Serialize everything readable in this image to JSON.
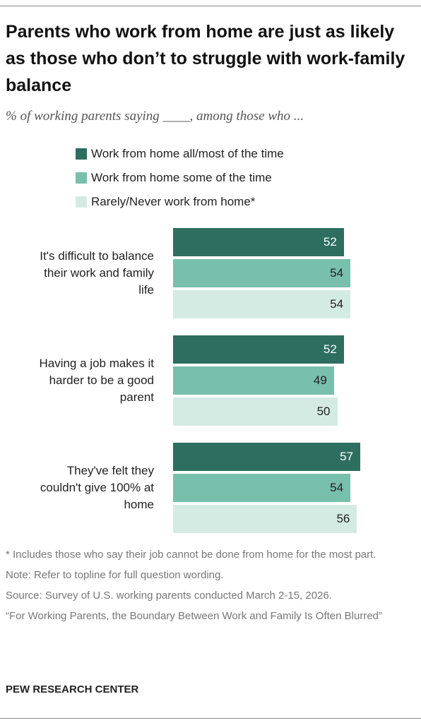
{
  "chart_data": {
    "type": "bar",
    "orientation": "horizontal",
    "title": "Parents who work from home are just as likely as those who don’t to struggle with work-family balance",
    "subtitle": "% of working parents saying ____, among those who ...",
    "categories": [
      "It's difficult to balance their work and family life",
      "Having a job makes it harder to be a good parent",
      "They've felt they couldn't give 100% at home"
    ],
    "series": [
      {
        "name": "Work from home all/most of the time",
        "color": "#2e6e60",
        "values": [
          52,
          52,
          57
        ]
      },
      {
        "name": "Work from home some of the time",
        "color": "#78bfac",
        "values": [
          54,
          49,
          54
        ]
      },
      {
        "name": "Rarely/Never work from home*",
        "color": "#d4ebe4",
        "values": [
          54,
          50,
          56
        ]
      }
    ],
    "notes": [
      "* Includes those who say their job cannot be done from home for the most part.",
      "Note: Refer to topline for full question wording.",
      "Source: Survey of U.S. working parents conducted March 2-15, 2026.",
      "“For Working Parents, the Boundary Between Work and Family Is Often Blurred”"
    ],
    "source_org": "PEW RESEARCH CENTER"
  }
}
